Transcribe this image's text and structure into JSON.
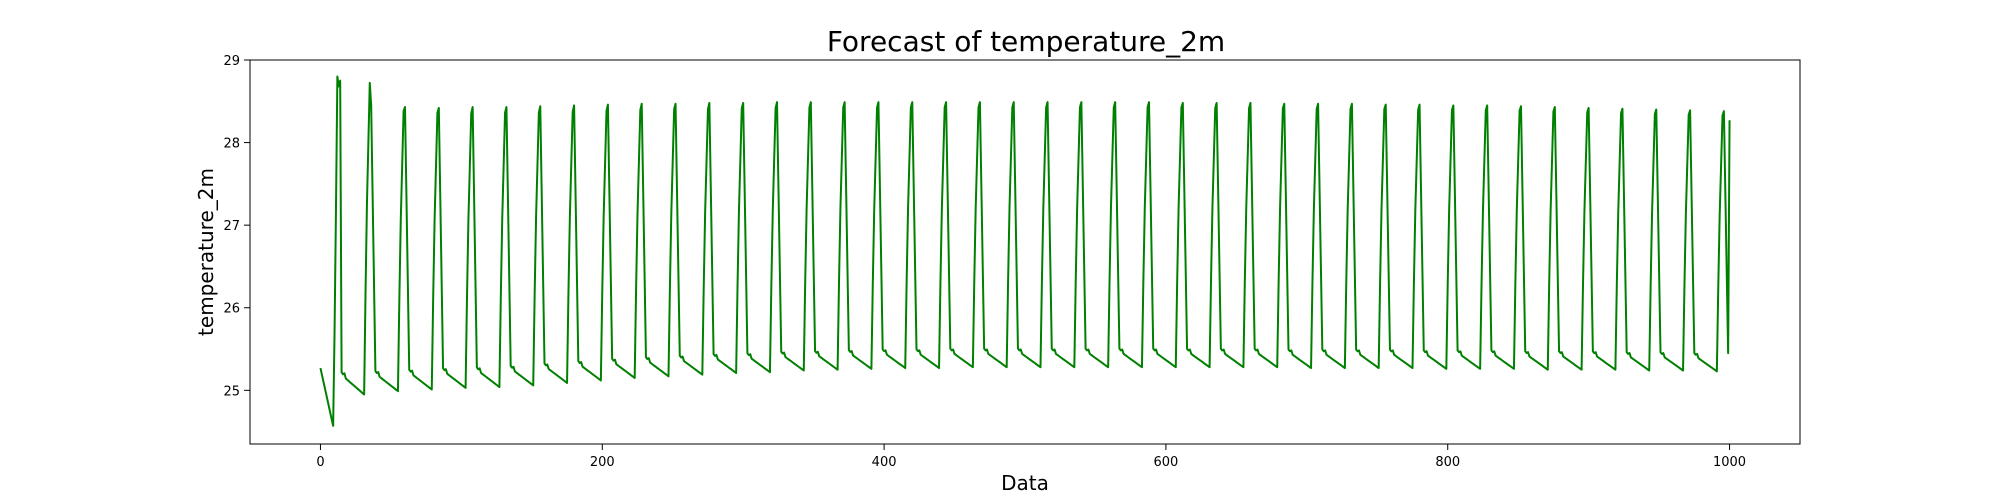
{
  "chart_data": {
    "type": "line",
    "title": "Forecast of temperature_2m",
    "xlabel": "Data",
    "ylabel": "temperature_2m",
    "xlim": [
      -50,
      1050
    ],
    "ylim": [
      24.35,
      29.0
    ],
    "xticks": [
      0,
      200,
      400,
      600,
      800,
      1000
    ],
    "yticks": [
      25,
      26,
      27,
      28,
      29
    ],
    "grid": false,
    "legend": "none",
    "series": [
      {
        "color": "#008000",
        "sampling": "one point per x = 0..1000 (hourly step), daily cycle of 24",
        "x_range": [
          0,
          1000
        ],
        "first_cycle": {
          "start": 25.27,
          "min": 24.57,
          "peak": 28.8
        },
        "peak_values": [
          28.8,
          28.45,
          28.43,
          28.42,
          28.43,
          28.43,
          28.44,
          28.45,
          28.46,
          28.47,
          28.47,
          28.48,
          28.48,
          28.49,
          28.49,
          28.49,
          28.49,
          28.49,
          28.49,
          28.49,
          28.49,
          28.49,
          28.49,
          28.49,
          28.49,
          28.48,
          28.48,
          28.48,
          28.47,
          28.47,
          28.47,
          28.46,
          28.46,
          28.45,
          28.45,
          28.44,
          28.43,
          28.42,
          28.41,
          28.4,
          28.39,
          28.38
        ],
        "trough_values": [
          24.57,
          24.95,
          24.99,
          25.01,
          25.03,
          25.04,
          25.06,
          25.09,
          25.12,
          25.15,
          25.17,
          25.19,
          25.21,
          25.22,
          25.24,
          25.25,
          25.26,
          25.27,
          25.27,
          25.28,
          25.28,
          25.28,
          25.28,
          25.28,
          25.28,
          25.28,
          25.28,
          25.28,
          25.28,
          25.27,
          25.27,
          25.27,
          25.27,
          25.26,
          25.26,
          25.26,
          25.25,
          25.25,
          25.25,
          25.24,
          25.24,
          25.23
        ],
        "last_point": {
          "x": 1000,
          "y": 28.27
        }
      }
    ]
  }
}
